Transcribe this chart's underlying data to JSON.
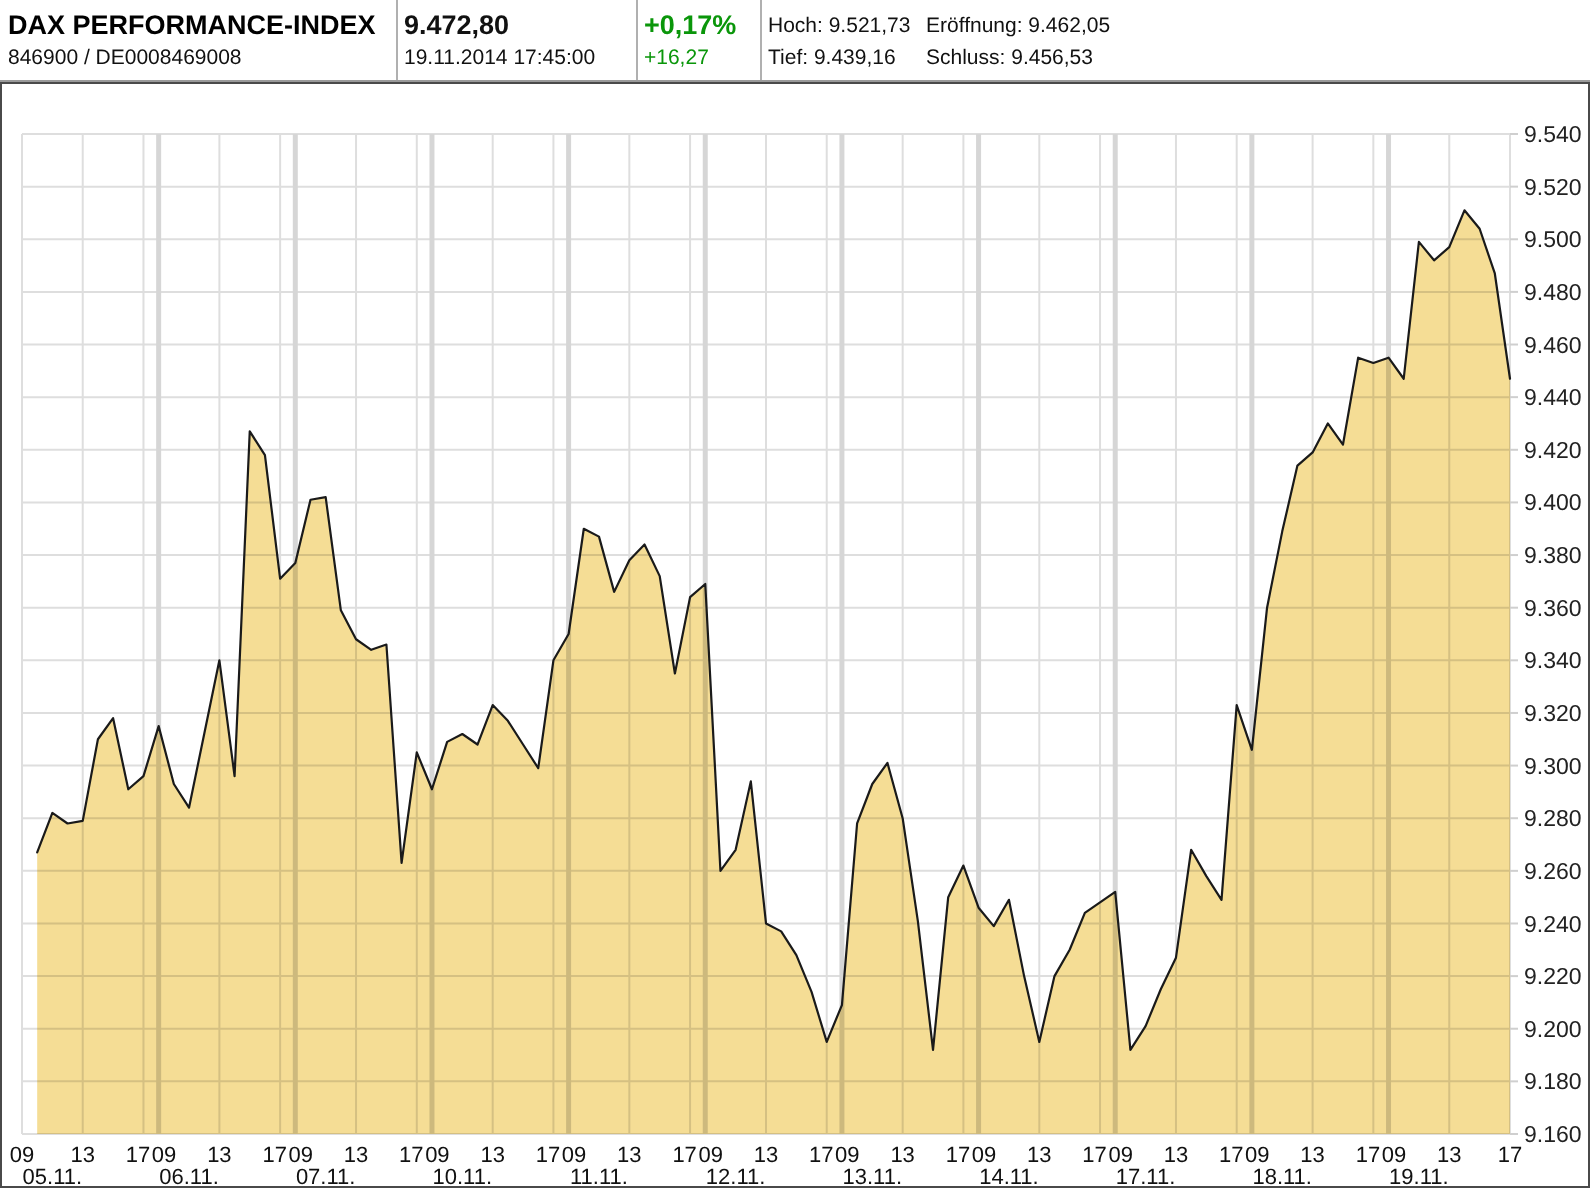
{
  "chart_data": {
    "type": "area",
    "title": "DAX PERFORMANCE-INDEX",
    "subtitle": "846900 / DE0008469008",
    "annotations": [
      "9.472,80",
      "19.11.2014 17:45:00",
      "+0,17%",
      "+16,27",
      "Hoch: 9.521,73",
      "Eröffnung: 9.462,05",
      "Tief: 9.439,16",
      "Schluss: 9.456,53"
    ],
    "categories": [
      "09",
      null,
      "\n05.11.",
      null,
      "13",
      null,
      null,
      null,
      "17",
      "09",
      null,
      "\n06.11.",
      null,
      "13",
      null,
      null,
      null,
      "17",
      "09",
      null,
      "\n07.11.",
      null,
      "13",
      null,
      null,
      null,
      "17",
      "09",
      null,
      "\n10.11.",
      null,
      "13",
      null,
      null,
      null,
      "17",
      "09",
      null,
      "\n11.11.",
      null,
      "13",
      null,
      null,
      null,
      "17",
      "09",
      null,
      "\n12.11.",
      null,
      "13",
      null,
      null,
      null,
      "17",
      "09",
      null,
      "\n13.11.",
      null,
      "13",
      null,
      null,
      null,
      "17",
      "09",
      null,
      "\n14.11.",
      null,
      "13",
      null,
      null,
      null,
      "17",
      "09",
      null,
      "\n17.11.",
      null,
      "13",
      null,
      null,
      null,
      "17",
      "09",
      null,
      "\n18.11.",
      null,
      "13",
      null,
      null,
      null,
      "17",
      "09",
      null,
      "\n19.11.",
      null,
      "13",
      null,
      null,
      null,
      "17"
    ],
    "series": [
      {
        "color": "#f5dd95",
        "values": [
          null,
          9267,
          9282,
          9278,
          9279,
          9310,
          9318,
          9291,
          9296,
          9315,
          9293,
          9284,
          9312,
          9340,
          9296,
          9427,
          9418,
          9371,
          9377,
          9401,
          9402,
          9359,
          9348,
          9344,
          9346,
          9263,
          9305,
          9291,
          9309,
          9312,
          9308,
          9323,
          9317,
          9308,
          9299,
          9340,
          9350,
          9390,
          9387,
          9366,
          9378,
          9384,
          9372,
          9335,
          9364,
          9369,
          9260,
          9268,
          9294,
          9240,
          9237,
          9228,
          9214,
          9195,
          9209,
          9278,
          9293,
          9301,
          9280,
          9241,
          9192,
          9250,
          9262,
          9246,
          9239,
          9249,
          9220,
          9195,
          9220,
          9230,
          9244,
          9248,
          9252,
          9192,
          9201,
          9215,
          9227,
          9268,
          9258,
          9249,
          9323,
          9306,
          9360,
          9389,
          9414,
          9419,
          9430,
          9422,
          9455,
          9453,
          9455,
          9447,
          9499,
          9492,
          9497,
          9511,
          9504,
          9487,
          9447
        ]
      }
    ],
    "ylim": [
      9160,
      9540
    ],
    "yticks": [
      {
        "value": 9160,
        "label": "9.160"
      },
      {
        "value": 9180,
        "label": "9.180"
      },
      {
        "value": 9200,
        "label": "9.200"
      },
      {
        "value": 9220,
        "label": "9.220"
      },
      {
        "value": 9240,
        "label": "9.240"
      },
      {
        "value": 9260,
        "label": "9.260"
      },
      {
        "value": 9280,
        "label": "9.280"
      },
      {
        "value": 9300,
        "label": "9.300"
      },
      {
        "value": 9320,
        "label": "9.320"
      },
      {
        "value": 9340,
        "label": "9.340"
      },
      {
        "value": 9360,
        "label": "9.360"
      },
      {
        "value": 9380,
        "label": "9.380"
      },
      {
        "value": 9400,
        "label": "9.400"
      },
      {
        "value": 9420,
        "label": "9.420"
      },
      {
        "value": 9440,
        "label": "9.440"
      },
      {
        "value": 9460,
        "label": "9.460"
      },
      {
        "value": 9480,
        "label": "9.480"
      },
      {
        "value": 9500,
        "label": "9.500"
      },
      {
        "value": 9520,
        "label": "9.520"
      },
      {
        "value": 9540,
        "label": "9.540"
      }
    ],
    "grid": true
  }
}
